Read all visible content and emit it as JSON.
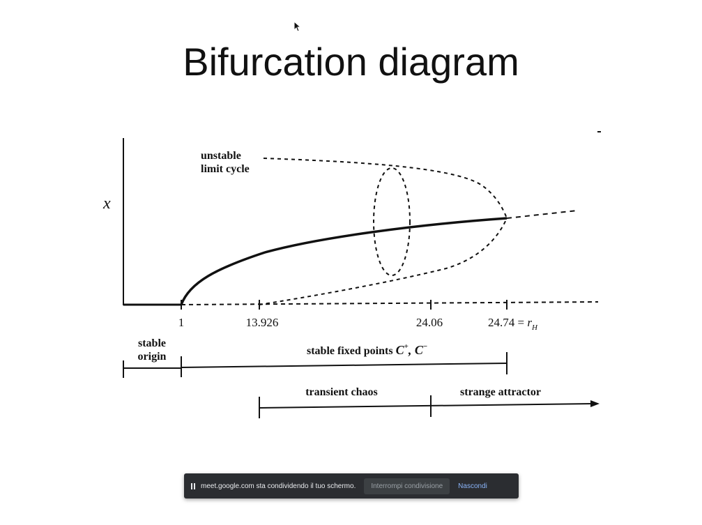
{
  "slide": {
    "title": "Bifurcation diagram"
  },
  "diagram": {
    "y_axis_label": "x",
    "curve_label_line1": "unstable",
    "curve_label_line2": "limit cycle",
    "ticks": [
      "1",
      "13.926",
      "24.06"
    ],
    "tick_rh_value": "24.74 = ",
    "tick_rh_symbol": "r",
    "tick_rh_subscript": "H",
    "region_stable_origin_line1": "stable",
    "region_stable_origin_line2": "origin",
    "region_fixed_points_text": "stable fixed points ",
    "region_fixed_points_c": "C",
    "region_fixed_points_plus": "+",
    "region_fixed_points_sep": ", C",
    "region_fixed_points_minus": "−",
    "region_transient": "transient chaos",
    "region_strange": "strange attractor"
  },
  "share_bar": {
    "message": "meet.google.com sta condividendo il tuo schermo.",
    "stop_label": "Interrompi condivisione",
    "hide_label": "Nascondi"
  }
}
